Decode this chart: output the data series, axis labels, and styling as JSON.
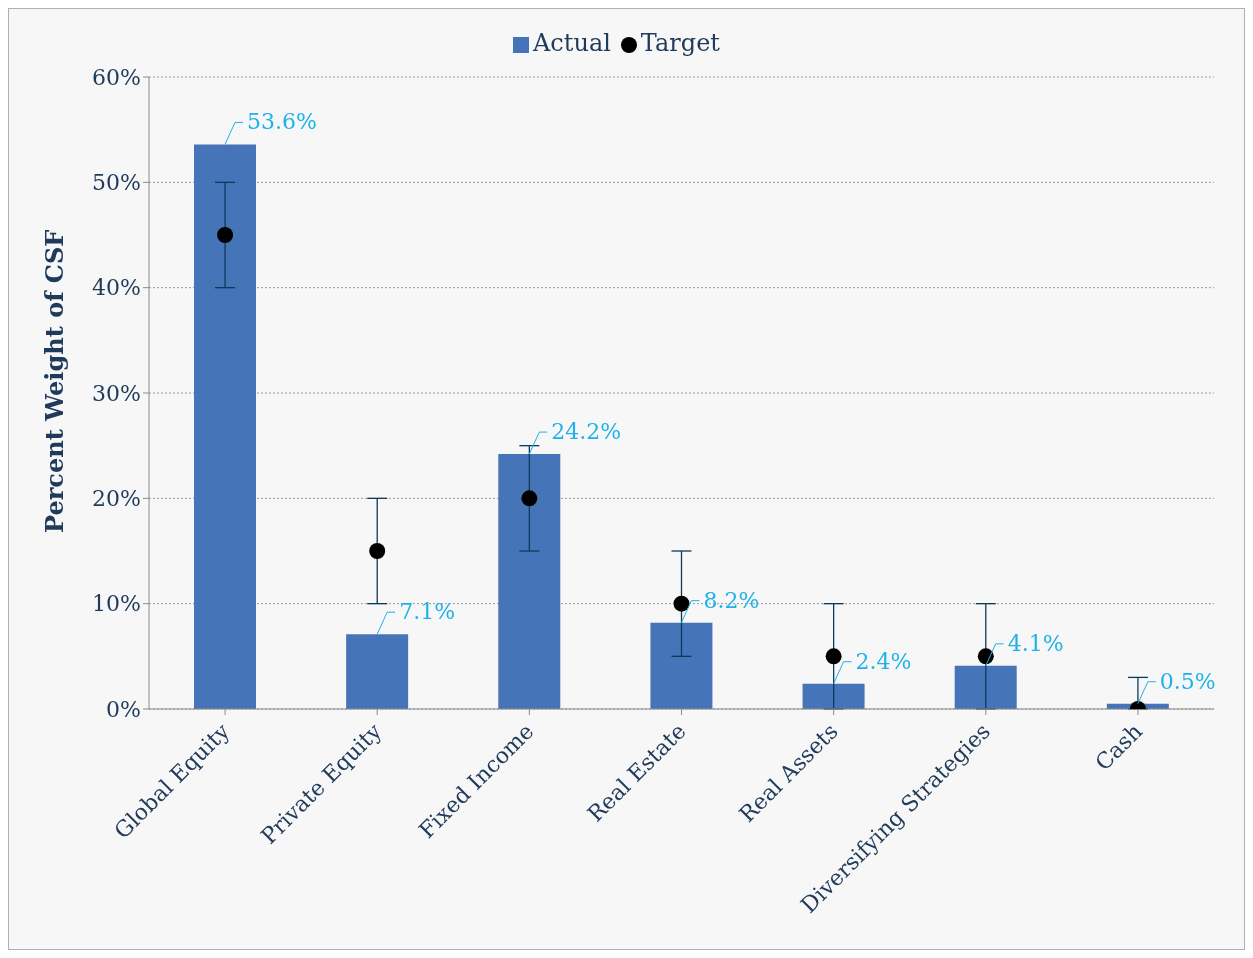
{
  "chart_data": {
    "type": "bar",
    "ylabel": "Percent Weight of CSF",
    "categories": [
      "Global Equity",
      "Private Equity",
      "Fixed Income",
      "Real Estate",
      "Real Assets",
      "Diversifying Strategies",
      "Cash"
    ],
    "series": [
      {
        "name": "Actual",
        "color": "#4674b8",
        "values": [
          53.6,
          7.1,
          24.2,
          8.2,
          2.4,
          4.1,
          0.5
        ],
        "value_labels": [
          "53.6%",
          "7.1%",
          "24.2%",
          "8.2%",
          "2.4%",
          "4.1%",
          "0.5%"
        ]
      },
      {
        "name": "Target",
        "type": "scatter",
        "color": "#000000",
        "values": [
          45,
          15,
          20,
          10,
          5,
          5,
          0
        ],
        "errors": [
          5,
          5,
          5,
          5,
          5,
          5,
          [
            0,
            3
          ]
        ]
      }
    ],
    "ylim": [
      0,
      60
    ],
    "yticks": [
      {
        "value": 0,
        "label": "0%"
      },
      {
        "value": 10,
        "label": "10%"
      },
      {
        "value": 20,
        "label": "20%"
      },
      {
        "value": 30,
        "label": "30%"
      },
      {
        "value": 40,
        "label": "40%"
      },
      {
        "value": 50,
        "label": "50%"
      },
      {
        "value": 60,
        "label": "60%"
      }
    ],
    "grid": "y",
    "legend": "top",
    "marker": "circle"
  }
}
